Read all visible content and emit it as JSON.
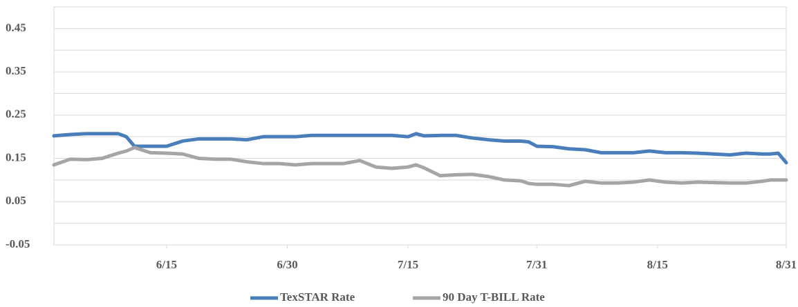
{
  "chart_data": {
    "type": "line",
    "x": [
      1,
      3,
      5,
      7,
      9,
      10,
      11,
      13,
      15,
      17,
      19,
      21,
      23,
      25,
      27,
      29,
      31,
      33,
      35,
      37,
      39,
      41,
      43,
      45,
      46,
      47,
      49,
      51,
      53,
      55,
      57,
      59,
      60,
      61,
      63,
      65,
      67,
      69,
      71,
      73,
      75,
      77,
      79,
      81,
      83,
      85,
      87,
      89,
      90,
      91,
      92
    ],
    "series": [
      {
        "name": "TexSTAR Rate",
        "color": "#4a7ebb",
        "values": [
          0.202,
          0.205,
          0.207,
          0.207,
          0.207,
          0.2,
          0.178,
          0.178,
          0.178,
          0.19,
          0.195,
          0.195,
          0.195,
          0.193,
          0.2,
          0.2,
          0.2,
          0.203,
          0.203,
          0.203,
          0.203,
          0.203,
          0.203,
          0.2,
          0.207,
          0.202,
          0.203,
          0.203,
          0.197,
          0.193,
          0.19,
          0.19,
          0.188,
          0.178,
          0.177,
          0.172,
          0.17,
          0.163,
          0.163,
          0.163,
          0.167,
          0.163,
          0.163,
          0.162,
          0.16,
          0.158,
          0.162,
          0.16,
          0.16,
          0.162,
          0.14
        ]
      },
      {
        "name": "90 Day T-BILL Rate",
        "color": "#a5a5a5",
        "values": [
          0.135,
          0.148,
          0.147,
          0.15,
          0.162,
          0.167,
          0.175,
          0.163,
          0.162,
          0.16,
          0.15,
          0.148,
          0.148,
          0.142,
          0.138,
          0.138,
          0.135,
          0.138,
          0.138,
          0.138,
          0.145,
          0.13,
          0.127,
          0.13,
          0.135,
          0.128,
          0.11,
          0.112,
          0.113,
          0.108,
          0.1,
          0.098,
          0.092,
          0.09,
          0.09,
          0.087,
          0.097,
          0.093,
          0.093,
          0.095,
          0.1,
          0.095,
          0.093,
          0.095,
          0.094,
          0.093,
          0.093,
          0.097,
          0.1,
          0.1,
          0.1
        ]
      }
    ],
    "xlim": [
      1,
      92
    ],
    "xticks": [
      {
        "value": 15,
        "label": "6/15"
      },
      {
        "value": 30,
        "label": "6/30"
      },
      {
        "value": 45,
        "label": "7/15"
      },
      {
        "value": 61,
        "label": "7/31"
      },
      {
        "value": 76,
        "label": "8/15"
      },
      {
        "value": 92,
        "label": "8/31"
      }
    ],
    "ylim": [
      -0.05,
      0.5
    ],
    "yticks": [
      -0.05,
      0.05,
      0.15,
      0.25,
      0.35,
      0.45
    ],
    "yminor_ticks": [
      0,
      0.1,
      0.2,
      0.3,
      0.4,
      0.5
    ],
    "grid": true,
    "legend": "bottom"
  }
}
